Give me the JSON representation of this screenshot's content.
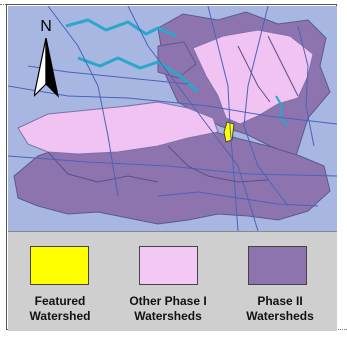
{
  "map": {
    "north_label": "N",
    "colors": {
      "background": "#a7b7e2",
      "road": "#4a63b8",
      "water": "#2aa7c9",
      "featured": "#ffff00",
      "phase1": "#f0c3f2",
      "phase2": "#8e74ae"
    },
    "icons": {
      "north_arrow": "north-arrow-icon"
    }
  },
  "legend": {
    "items": [
      {
        "label_line1": "Featured",
        "label_line2": "Watershed",
        "color": "#ffff00"
      },
      {
        "label_line1": "Other Phase I",
        "label_line2": "Watersheds",
        "color": "#f4c8f4"
      },
      {
        "label_line1": "Phase II",
        "label_line2": "Watersheds",
        "color": "#8e74ae"
      }
    ]
  }
}
